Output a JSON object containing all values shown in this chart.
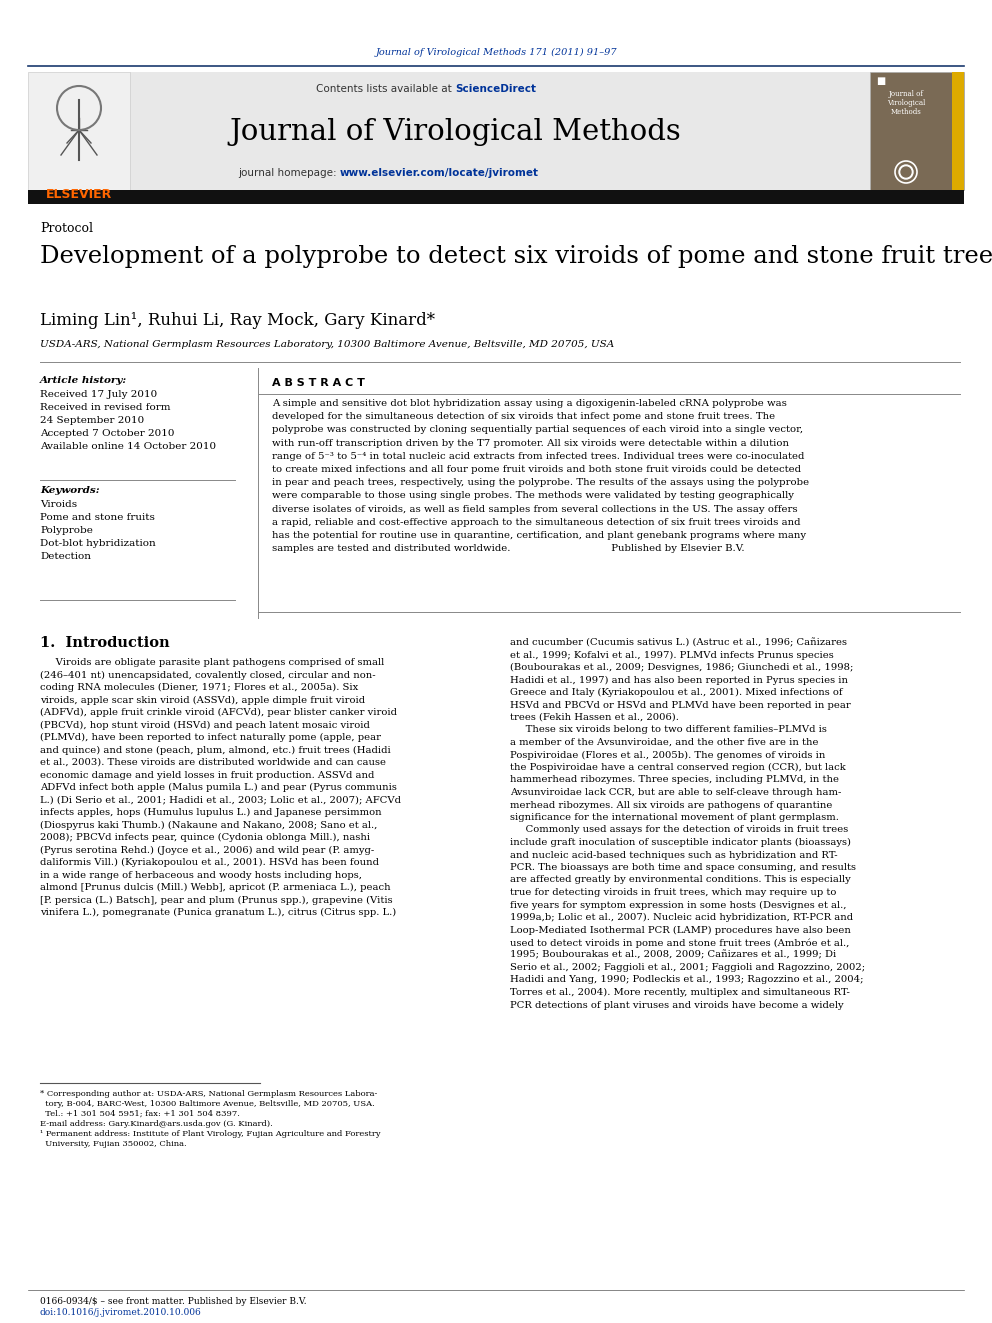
{
  "figsize": [
    9.92,
    13.23
  ],
  "dpi": 100,
  "bg_color": "#ffffff",
  "journal_ref": "Journal of Virological Methods 171 (2011) 91–97",
  "journal_ref_color": "#003399",
  "science_direct": "ScienceDirect",
  "sciencedirect_color": "#003399",
  "journal_name": "Journal of Virological Methods",
  "homepage_url": "www.elsevier.com/locate/jviromet",
  "homepage_url_color": "#003399",
  "protocol_text": "Protocol",
  "paper_title": "Development of a polyprobe to detect six viroids of pome and stone fruit trees",
  "authors": "Liming Lin¹, Ruhui Li, Ray Mock, Gary Kinard*",
  "affiliation": "USDA-ARS, National Germplasm Resources Laboratory, 10300 Baltimore Avenue, Beltsville, MD 20705, USA",
  "abstract_header": "A B S T R A C T",
  "abstract_text_lines": [
    "A simple and sensitive dot blot hybridization assay using a digoxigenin-labeled cRNA polyprobe was",
    "developed for the simultaneous detection of six viroids that infect pome and stone fruit trees. The",
    "polyprobe was constructed by cloning sequentially partial sequences of each viroid into a single vector,",
    "with run-off transcription driven by the T7 promoter. All six viroids were detectable within a dilution",
    "range of 5⁻³ to 5⁻⁴ in total nucleic acid extracts from infected trees. Individual trees were co-inoculated",
    "to create mixed infections and all four pome fruit viroids and both stone fruit viroids could be detected",
    "in pear and peach trees, respectively, using the polyprobe. The results of the assays using the polyprobe",
    "were comparable to those using single probes. The methods were validated by testing geographically",
    "diverse isolates of viroids, as well as field samples from several collections in the US. The assay offers",
    "a rapid, reliable and cost-effective approach to the simultaneous detection of six fruit trees viroids and",
    "has the potential for routine use in quarantine, certification, and plant genebank programs where many",
    "samples are tested and distributed worldwide.                               Published by Elsevier B.V."
  ],
  "article_history_header": "Article history:",
  "article_history_lines": [
    "Received 17 July 2010",
    "Received in revised form",
    "24 September 2010",
    "Accepted 7 October 2010",
    "Available online 14 October 2010"
  ],
  "keywords_header": "Keywords:",
  "keywords_lines": [
    "Viroids",
    "Pome and stone fruits",
    "Polyprobe",
    "Dot-blot hybridization",
    "Detection"
  ],
  "intro_header": "1.  Introduction",
  "intro_left_lines": [
    "     Viroids are obligate parasite plant pathogens comprised of small",
    "(246–401 nt) unencapsidated, covalently closed, circular and non-",
    "coding RNA molecules (Diener, 1971; Flores et al., 2005a). Six",
    "viroids, apple scar skin viroid (ASSVd), apple dimple fruit viroid",
    "(ADFVd), apple fruit crinkle viroid (AFCVd), pear blister canker viroid",
    "(PBCVd), hop stunt viroid (HSVd) and peach latent mosaic viroid",
    "(PLMVd), have been reported to infect naturally pome (apple, pear",
    "and quince) and stone (peach, plum, almond, etc.) fruit trees (Hadidi",
    "et al., 2003). These viroids are distributed worldwide and can cause",
    "economic damage and yield losses in fruit production. ASSVd and",
    "ADFVd infect both apple (Malus pumila L.) and pear (Pyrus communis",
    "L.) (Di Serio et al., 2001; Hadidi et al., 2003; Lolic et al., 2007); AFCVd",
    "infects apples, hops (Humulus lupulus L.) and Japanese persimmon",
    "(Diospyrus kaki Thumb.) (Nakaune and Nakano, 2008; Sano et al.,",
    "2008); PBCVd infects pear, quince (Cydonia oblonga Mill.), nashi",
    "(Pyrus serotina Rehd.) (Joyce et al., 2006) and wild pear (P. amyg-",
    "daliformis Vill.) (Kyriakopoulou et al., 2001). HSVd has been found",
    "in a wide range of herbaceous and woody hosts including hops,",
    "almond [Prunus dulcis (Mill.) Webb], apricot (P. armeniaca L.), peach",
    "[P. persica (L.) Batsch], pear and plum (Prunus spp.), grapevine (Vitis",
    "vinifera L.), pomegranate (Punica granatum L.), citrus (Citrus spp. L.)"
  ],
  "intro_right_lines": [
    "and cucumber (Cucumis sativus L.) (Astruc et al., 1996; Cañizares",
    "et al., 1999; Kofalvi et al., 1997). PLMVd infects Prunus species",
    "(Boubourakas et al., 2009; Desvignes, 1986; Giunchedi et al., 1998;",
    "Hadidi et al., 1997) and has also been reported in Pyrus species in",
    "Greece and Italy (Kyriakopoulou et al., 2001). Mixed infections of",
    "HSVd and PBCVd or HSVd and PLMVd have been reported in pear",
    "trees (Fekih Hassen et al., 2006).",
    "     These six viroids belong to two different families–PLMVd is",
    "a member of the Avsunviroidae, and the other five are in the",
    "Pospiviroidae (Flores et al., 2005b). The genomes of viroids in",
    "the Pospiviroidae have a central conserved region (CCR), but lack",
    "hammerhead ribozymes. Three species, including PLMVd, in the",
    "Avsunviroidae lack CCR, but are able to self-cleave through ham-",
    "merhead ribozymes. All six viroids are pathogens of quarantine",
    "significance for the international movement of plant germplasm.",
    "     Commonly used assays for the detection of viroids in fruit trees",
    "include graft inoculation of susceptible indicator plants (bioassays)",
    "and nucleic acid-based techniques such as hybridization and RT-",
    "PCR. The bioassays are both time and space consuming, and results",
    "are affected greatly by environmental conditions. This is especially",
    "true for detecting viroids in fruit trees, which may require up to",
    "five years for symptom expression in some hosts (Desvignes et al.,",
    "1999a,b; Lolic et al., 2007). Nucleic acid hybridization, RT-PCR and",
    "Loop-Mediated Isothermal PCR (LAMP) procedures have also been",
    "used to detect viroids in pome and stone fruit trees (Ambróe et al.,",
    "1995; Boubourakas et al., 2008, 2009; Cañizares et al., 1999; Di",
    "Serio et al., 2002; Faggioli et al., 2001; Faggioli and Ragozzino, 2002;",
    "Hadidi and Yang, 1990; Podleckis et al., 1993; Ragozzino et al., 2004;",
    "Torres et al., 2004). More recently, multiplex and simultaneous RT-",
    "PCR detections of plant viruses and viroids have become a widely"
  ],
  "footnote_lines": [
    "* Corresponding author at: USDA-ARS, National Germplasm Resources Labora-",
    "  tory, B-004, BARC-West, 10300 Baltimore Avenue, Beltsville, MD 20705, USA.",
    "  Tel.: +1 301 504 5951; fax: +1 301 504 8397.",
    "E-mail address: Gary.Kinard@ars.usda.gov (G. Kinard).",
    "¹ Permanent address: Institute of Plant Virology, Fujian Agriculture and Forestry",
    "  University, Fujian 350002, China."
  ],
  "issn_line": "0166-0934/$ – see front matter. Published by Elsevier B.V.",
  "doi_line": "doi:10.1016/j.jviromet.2010.10.006",
  "link_color": "#003399",
  "text_color": "#000000"
}
